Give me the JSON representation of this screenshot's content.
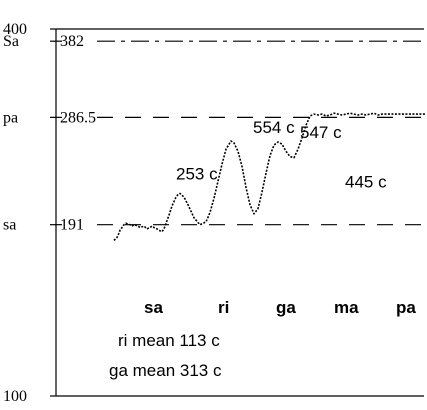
{
  "chart_data": {
    "type": "line",
    "y_scale": "log",
    "ylim": [
      100,
      400
    ],
    "left_ticks": [
      "400",
      "Sa",
      "pa",
      "sa",
      "100"
    ],
    "right_ticks": [
      "382",
      "286.5",
      "191"
    ],
    "reference_lines": [
      {
        "value": 382,
        "style": "dash-dot"
      },
      {
        "value": 286.5,
        "style": "dashed"
      },
      {
        "value": 191,
        "style": "dashed"
      }
    ],
    "swaras": [
      "sa",
      "ri",
      "ga",
      "ma",
      "pa"
    ],
    "peak_annotations": [
      {
        "label": "253 c",
        "value": 215
      },
      {
        "label": "554 c",
        "value": 262
      },
      {
        "label": "547 c",
        "value": 261
      },
      {
        "label": "445 c",
        "value": 246
      }
    ],
    "notes": [
      "ri mean 113 c",
      "ga mean 313 c"
    ],
    "trace": {
      "x": [
        0,
        3,
        5,
        6,
        8,
        10,
        12,
        16,
        18,
        20,
        24,
        26,
        30,
        33,
        36,
        38,
        40,
        43,
        45,
        48,
        50,
        52,
        55,
        58,
        62,
        64,
        66,
        70,
        74,
        80,
        86,
        92,
        96,
        100,
        104,
        108,
        112,
        117,
        120,
        124,
        128,
        132,
        136,
        140,
        144,
        148,
        152,
        156,
        160,
        164,
        168,
        172,
        176,
        180,
        184,
        188,
        192,
        196,
        200,
        204,
        208,
        212,
        216,
        220,
        224,
        228,
        232,
        236,
        240,
        244,
        248,
        252,
        256,
        260,
        264,
        268,
        271,
        274,
        278,
        282,
        286,
        290,
        294,
        298,
        300,
        304,
        308,
        312
      ],
      "y": [
        180,
        182,
        185,
        187,
        189,
        191,
        192,
        191,
        190,
        191,
        190,
        189,
        190,
        188,
        189,
        190,
        189,
        188,
        187,
        186,
        188,
        192,
        198,
        205,
        212,
        214,
        215,
        212,
        206,
        196,
        191,
        193,
        200,
        211,
        225,
        240,
        254,
        262,
        260,
        252,
        238,
        220,
        206,
        199,
        203,
        216,
        232,
        248,
        258,
        261,
        259,
        252,
        247,
        246,
        254,
        265,
        278,
        288,
        290,
        289,
        290,
        288,
        289,
        291,
        290,
        289,
        290,
        291,
        290,
        289,
        290,
        289,
        290,
        291,
        289,
        290,
        290,
        290,
        290,
        290,
        290,
        290,
        290,
        290,
        290,
        290,
        290,
        290
      ]
    }
  }
}
